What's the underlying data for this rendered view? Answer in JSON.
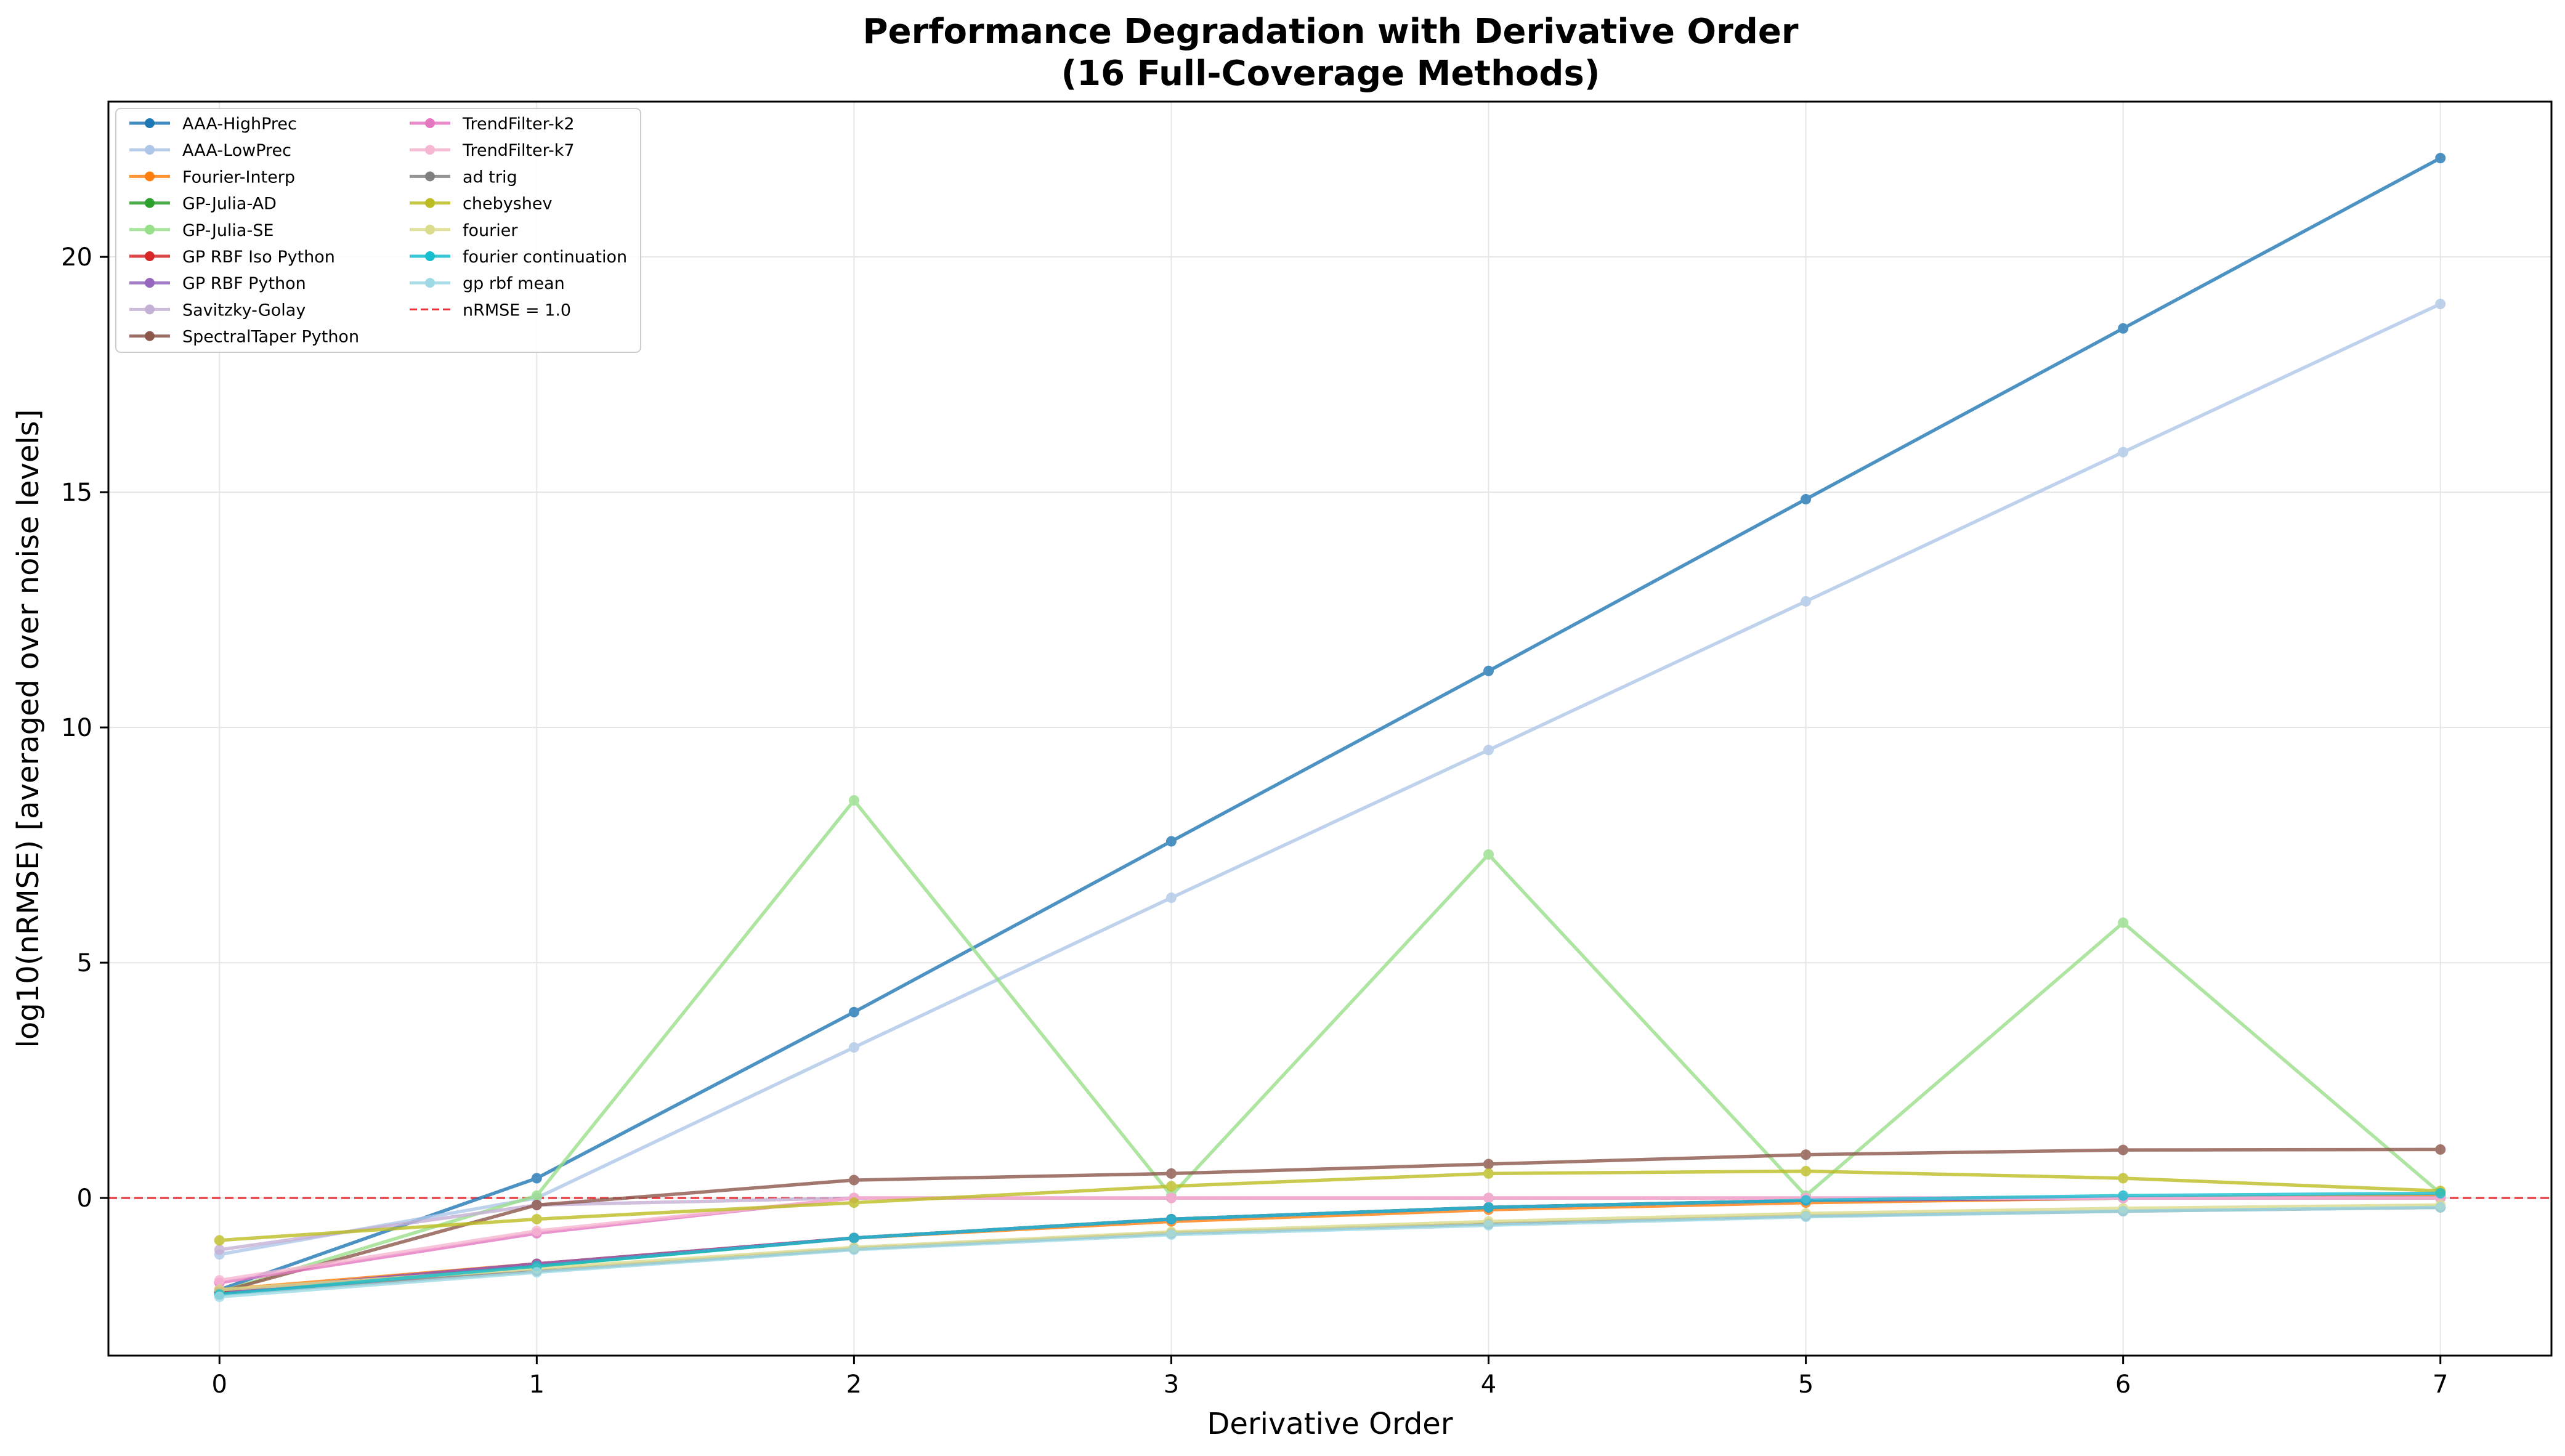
{
  "chart_data": {
    "type": "line",
    "title_lines": [
      "Performance Degradation with Derivative Order",
      "(16 Full-Coverage Methods)"
    ],
    "xlabel": "Derivative Order",
    "ylabel": "log10(nRMSE) [averaged over noise levels]",
    "x": [
      0,
      1,
      2,
      3,
      4,
      5,
      6,
      7
    ],
    "x_ticks": [
      "0",
      "1",
      "2",
      "3",
      "4",
      "5",
      "6",
      "7"
    ],
    "y_ticks": [
      "0",
      "5",
      "10",
      "15",
      "20"
    ],
    "xlim": [
      -0.35,
      7.35
    ],
    "ylim": [
      -3.35,
      23.3
    ],
    "grid": true,
    "legend_position": "top-left",
    "legend_columns": 2,
    "series": [
      {
        "name": "AAA-HighPrec",
        "color": "#1f77b4",
        "values": [
          -1.95,
          0.42,
          3.95,
          7.58,
          11.2,
          14.85,
          18.48,
          22.1
        ]
      },
      {
        "name": "AAA-LowPrec",
        "color": "#aec7e8",
        "values": [
          -1.2,
          0.0,
          3.2,
          6.38,
          9.52,
          12.68,
          15.85,
          19.0
        ]
      },
      {
        "name": "Fourier-Interp",
        "color": "#ff7f0e",
        "values": [
          -1.95,
          -1.4,
          -0.85,
          -0.5,
          -0.25,
          -0.1,
          0.0,
          0.05
        ]
      },
      {
        "name": "GP-Julia-AD",
        "color": "#2ca02c",
        "values": [
          -2.0,
          -1.45,
          -0.85,
          -0.45,
          -0.2,
          -0.05,
          0.0,
          0.0
        ]
      },
      {
        "name": "GP-Julia-SE",
        "color": "#98df8a",
        "values": [
          -2.0,
          0.05,
          8.45,
          0.05,
          7.3,
          0.05,
          5.85,
          0.1
        ]
      },
      {
        "name": "GP RBF Iso Python",
        "color": "#d62728",
        "values": [
          -2.0,
          -1.4,
          -0.85,
          -0.45,
          -0.2,
          -0.05,
          0.0,
          0.0
        ]
      },
      {
        "name": "GP RBF Python",
        "color": "#9467bd",
        "values": [
          -2.0,
          -1.4,
          -0.85,
          -0.45,
          -0.2,
          -0.05,
          0.0,
          0.0
        ]
      },
      {
        "name": "Savitzky-Golay",
        "color": "#c5b0d5",
        "values": [
          -1.1,
          -0.15,
          0.0,
          0.0,
          0.0,
          0.0,
          0.0,
          0.0
        ]
      },
      {
        "name": "SpectralTaper Python",
        "color": "#8c564b",
        "values": [
          -2.0,
          -0.15,
          0.38,
          0.52,
          0.72,
          0.92,
          1.02,
          1.03
        ]
      },
      {
        "name": "TrendFilter-k2",
        "color": "#e377c2",
        "values": [
          -1.8,
          -0.75,
          0.0,
          0.0,
          0.0,
          0.0,
          0.0,
          0.0
        ]
      },
      {
        "name": "TrendFilter-k7",
        "color": "#f7b6d2",
        "values": [
          -1.75,
          -0.7,
          0.0,
          0.0,
          0.0,
          0.0,
          0.0,
          0.0
        ]
      },
      {
        "name": "ad trig",
        "color": "#7f7f7f",
        "values": [
          -2.05,
          -1.55,
          -1.08,
          -0.75,
          -0.55,
          -0.38,
          -0.28,
          -0.2
        ]
      },
      {
        "name": "chebyshev",
        "color": "#bcbd22",
        "values": [
          -0.9,
          -0.45,
          -0.1,
          0.25,
          0.52,
          0.57,
          0.42,
          0.15
        ]
      },
      {
        "name": "fourier",
        "color": "#dbdb8d",
        "values": [
          -1.95,
          -1.5,
          -1.05,
          -0.72,
          -0.5,
          -0.33,
          -0.22,
          -0.15
        ]
      },
      {
        "name": "fourier continuation",
        "color": "#17becf",
        "values": [
          -2.05,
          -1.45,
          -0.85,
          -0.45,
          -0.2,
          -0.05,
          0.05,
          0.1
        ]
      },
      {
        "name": "gp rbf mean",
        "color": "#9edae5",
        "values": [
          -2.1,
          -1.58,
          -1.1,
          -0.78,
          -0.58,
          -0.4,
          -0.28,
          -0.2
        ]
      }
    ],
    "reference_line": {
      "name": "nRMSE = 1.0",
      "y": 0,
      "color": "#e8333a",
      "style": "dashed"
    }
  }
}
